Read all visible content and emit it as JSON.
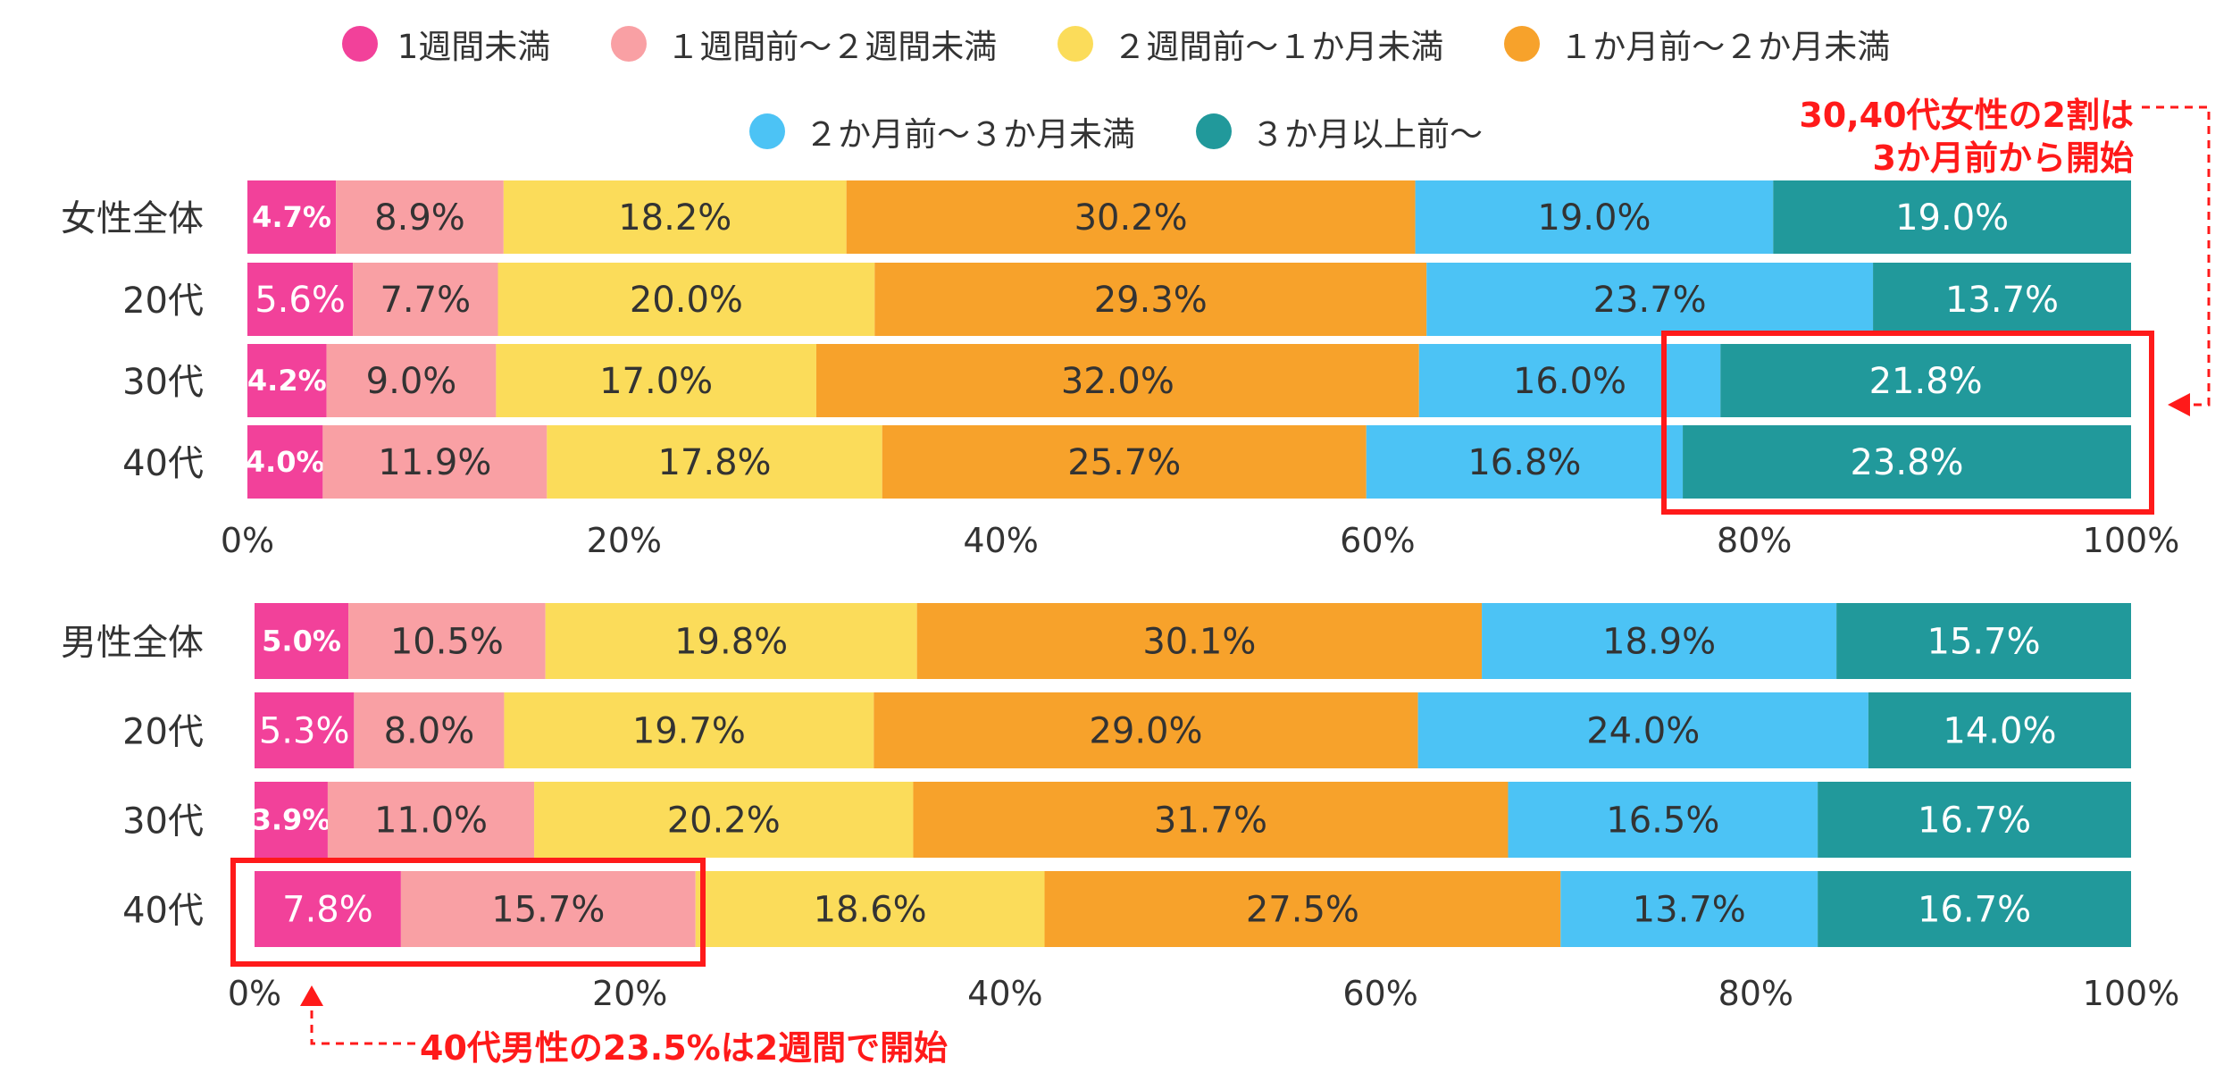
{
  "chart_data": [
    {
      "type": "bar",
      "orientation": "horizontal",
      "stacked": true,
      "categories": [
        "女性全体",
        "20代",
        "30代",
        "40代"
      ],
      "xlim": [
        0,
        100
      ],
      "x_ticks": [
        "0%",
        "20%",
        "40%",
        "60%",
        "80%",
        "100%"
      ],
      "series": [
        {
          "name": "1週間未満",
          "values": [
            4.7,
            5.6,
            4.2,
            4.0
          ],
          "labels": [
            "4.7%",
            "5.6%",
            "4.2%",
            "4.0%"
          ]
        },
        {
          "name": "１週間前～２週間未満",
          "values": [
            8.9,
            7.7,
            9.0,
            11.9
          ],
          "labels": [
            "8.9%",
            "7.7%",
            "9.0%",
            "11.9%"
          ]
        },
        {
          "name": "２週間前～１か月未満",
          "values": [
            18.2,
            20.0,
            17.0,
            17.8
          ],
          "labels": [
            "18.2%",
            "20.0%",
            "17.0%",
            "17.8%"
          ]
        },
        {
          "name": "１か月前～２か月未満",
          "values": [
            30.2,
            29.3,
            32.0,
            25.7
          ],
          "labels": [
            "30.2%",
            "29.3%",
            "32.0%",
            "25.7%"
          ]
        },
        {
          "name": "２か月前～３か月未満",
          "values": [
            19.0,
            23.7,
            16.0,
            16.8
          ],
          "labels": [
            "19.0%",
            "23.7%",
            "16.0%",
            "16.8%"
          ]
        },
        {
          "name": "３か月以上前～",
          "values": [
            19.0,
            13.7,
            21.8,
            23.8
          ],
          "labels": [
            "19.0%",
            "13.7%",
            "21.8%",
            "23.8%"
          ]
        }
      ]
    },
    {
      "type": "bar",
      "orientation": "horizontal",
      "stacked": true,
      "categories": [
        "男性全体",
        "20代",
        "30代",
        "40代"
      ],
      "xlim": [
        0,
        100
      ],
      "x_ticks": [
        "0%",
        "20%",
        "40%",
        "60%",
        "80%",
        "100%"
      ],
      "series": [
        {
          "name": "1週間未満",
          "values": [
            5.0,
            5.3,
            3.9,
            7.8
          ],
          "labels": [
            "5.0%",
            "5.3%",
            "3.9%",
            "7.8%"
          ]
        },
        {
          "name": "１週間前～２週間未満",
          "values": [
            10.5,
            8.0,
            11.0,
            15.7
          ],
          "labels": [
            "10.5%",
            "8.0%",
            "11.0%",
            "15.7%"
          ]
        },
        {
          "name": "２週間前～１か月未満",
          "values": [
            19.8,
            19.7,
            20.2,
            18.6
          ],
          "labels": [
            "19.8%",
            "19.7%",
            "20.2%",
            "18.6%"
          ]
        },
        {
          "name": "１か月前～２か月未満",
          "values": [
            30.1,
            29.0,
            31.7,
            27.5
          ],
          "labels": [
            "30.1%",
            "29.0%",
            "31.7%",
            "27.5%"
          ]
        },
        {
          "name": "２か月前～３か月未満",
          "values": [
            18.9,
            24.0,
            16.5,
            13.7
          ],
          "labels": [
            "18.9%",
            "24.0%",
            "16.5%",
            "13.7%"
          ]
        },
        {
          "name": "３か月以上前～",
          "values": [
            15.7,
            14.0,
            16.7,
            16.7
          ],
          "labels": [
            "15.7%",
            "14.0%",
            "16.7%",
            "16.7%"
          ]
        }
      ]
    }
  ],
  "legend": {
    "row1": [
      "1週間未満",
      "１週間前～２週間未満",
      "２週間前～１か月未満",
      "１か月前～２か月未満"
    ],
    "row2": [
      "２か月前～３か月未満",
      "３か月以上前～"
    ]
  },
  "colors": [
    "#f2419a",
    "#f9a0a4",
    "#fbdc5a",
    "#f7a22b",
    "#4cc3f5",
    "#21999b"
  ],
  "label_colors": [
    "#ffffff",
    "#333333",
    "#333333",
    "#333333",
    "#333333",
    "#ffffff"
  ],
  "annotations": {
    "female_line1": "30,40代女性の2割は",
    "female_line2": "3か月前から開始",
    "male": "40代男性の23.5%は2週間で開始"
  },
  "annotation_color": "#ff1a1a"
}
